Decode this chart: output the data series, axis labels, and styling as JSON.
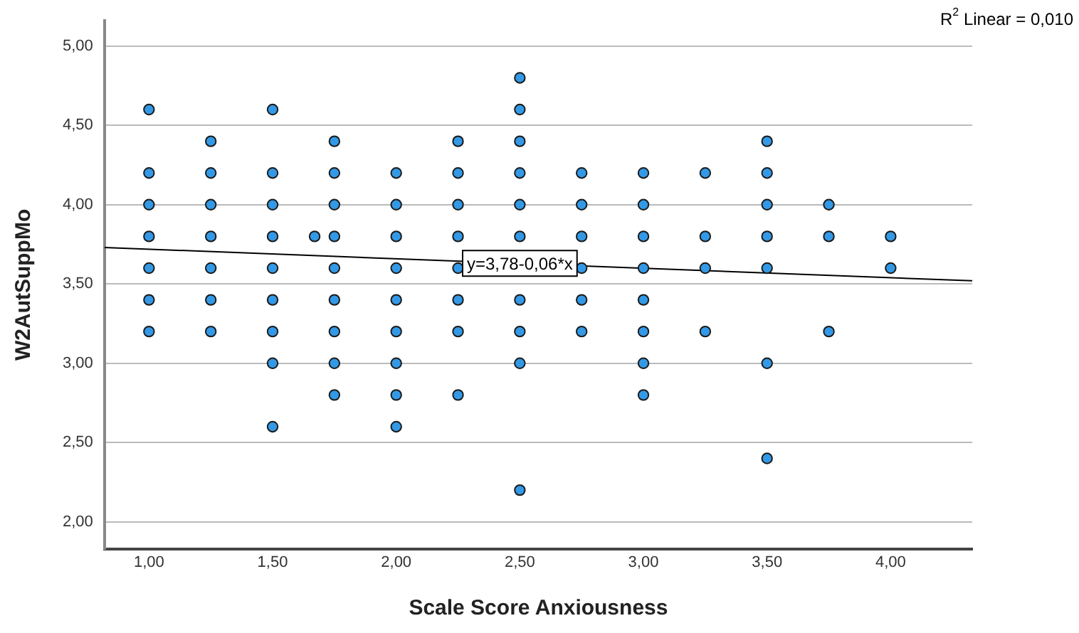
{
  "chart_data": {
    "type": "scatter",
    "xlabel": "Scale Score Anxiousness",
    "ylabel": "W2AutSuppMo",
    "xlim": [
      0.82,
      4.33
    ],
    "ylim": [
      1.83,
      5.16
    ],
    "xticks": [
      {
        "value": 1,
        "label": "1,00"
      },
      {
        "value": 1.5,
        "label": "1,50"
      },
      {
        "value": 2,
        "label": "2,00"
      },
      {
        "value": 2.5,
        "label": "2,50"
      },
      {
        "value": 3,
        "label": "3,00"
      },
      {
        "value": 3.5,
        "label": "3,50"
      },
      {
        "value": 4,
        "label": "4,00"
      }
    ],
    "yticks": [
      {
        "value": 2,
        "label": "2,00"
      },
      {
        "value": 2.5,
        "label": "2,50"
      },
      {
        "value": 3,
        "label": "3,00"
      },
      {
        "value": 3.5,
        "label": "3,50"
      },
      {
        "value": 4,
        "label": "4,00"
      },
      {
        "value": 4.5,
        "label": "4,50"
      },
      {
        "value": 5,
        "label": "5,00"
      }
    ],
    "grid": "y",
    "legend": false,
    "marker": "circle",
    "series": [
      {
        "type": "scatter",
        "color": "#3399e6",
        "x": [
          1,
          1,
          1,
          1,
          1,
          1,
          1,
          1.25,
          1.25,
          1.25,
          1.25,
          1.25,
          1.25,
          1.25,
          1.5,
          1.5,
          1.5,
          1.5,
          1.5,
          1.5,
          1.5,
          1.5,
          1.5,
          1.67,
          1.75,
          1.75,
          1.75,
          1.75,
          1.75,
          1.75,
          1.75,
          1.75,
          1.75,
          2,
          2,
          2,
          2,
          2,
          2,
          2,
          2,
          2,
          2.25,
          2.25,
          2.25,
          2.25,
          2.25,
          2.25,
          2.25,
          2.25,
          2.5,
          2.5,
          2.5,
          2.5,
          2.5,
          2.5,
          2.5,
          2.5,
          2.5,
          2.5,
          2.75,
          2.75,
          2.75,
          2.75,
          2.75,
          2.75,
          3,
          3,
          3,
          3,
          3,
          3,
          3,
          3,
          3.25,
          3.25,
          3.25,
          3.25,
          3.5,
          3.5,
          3.5,
          3.5,
          3.5,
          3.5,
          3.5,
          3.75,
          3.75,
          3.75,
          4,
          4
        ],
        "values": [
          4.6,
          4.2,
          4.0,
          3.8,
          3.6,
          3.4,
          3.2,
          4.4,
          4.2,
          4.0,
          3.8,
          3.6,
          3.4,
          3.2,
          4.6,
          4.2,
          4.0,
          3.8,
          3.6,
          3.4,
          3.2,
          3.0,
          2.6,
          3.8,
          4.4,
          4.2,
          4.0,
          3.8,
          3.6,
          3.4,
          3.2,
          3.0,
          2.8,
          4.2,
          4.0,
          3.8,
          3.6,
          3.4,
          3.2,
          3.0,
          2.8,
          2.6,
          4.4,
          4.2,
          4.0,
          3.8,
          3.6,
          3.4,
          3.2,
          2.8,
          4.8,
          4.6,
          4.4,
          4.2,
          4.0,
          3.8,
          3.4,
          3.2,
          3.0,
          2.2,
          4.2,
          4.0,
          3.8,
          3.6,
          3.4,
          3.2,
          4.2,
          4.0,
          3.8,
          3.6,
          3.4,
          3.2,
          3.0,
          2.8,
          4.2,
          3.8,
          3.6,
          3.2,
          4.4,
          4.2,
          4.0,
          3.8,
          3.6,
          3.0,
          2.4,
          4.0,
          3.8,
          3.2,
          3.8,
          3.6
        ]
      },
      {
        "type": "line",
        "color": "#000000",
        "marker": "none",
        "x": [
          0.82,
          4.33
        ],
        "values": [
          3.73,
          3.52
        ]
      }
    ],
    "annotations": [
      {
        "text": "y=3,78-0,06*x",
        "x": 2.5,
        "y": 3.63
      },
      "R$^{2}$ Linear = 0,010"
    ]
  }
}
